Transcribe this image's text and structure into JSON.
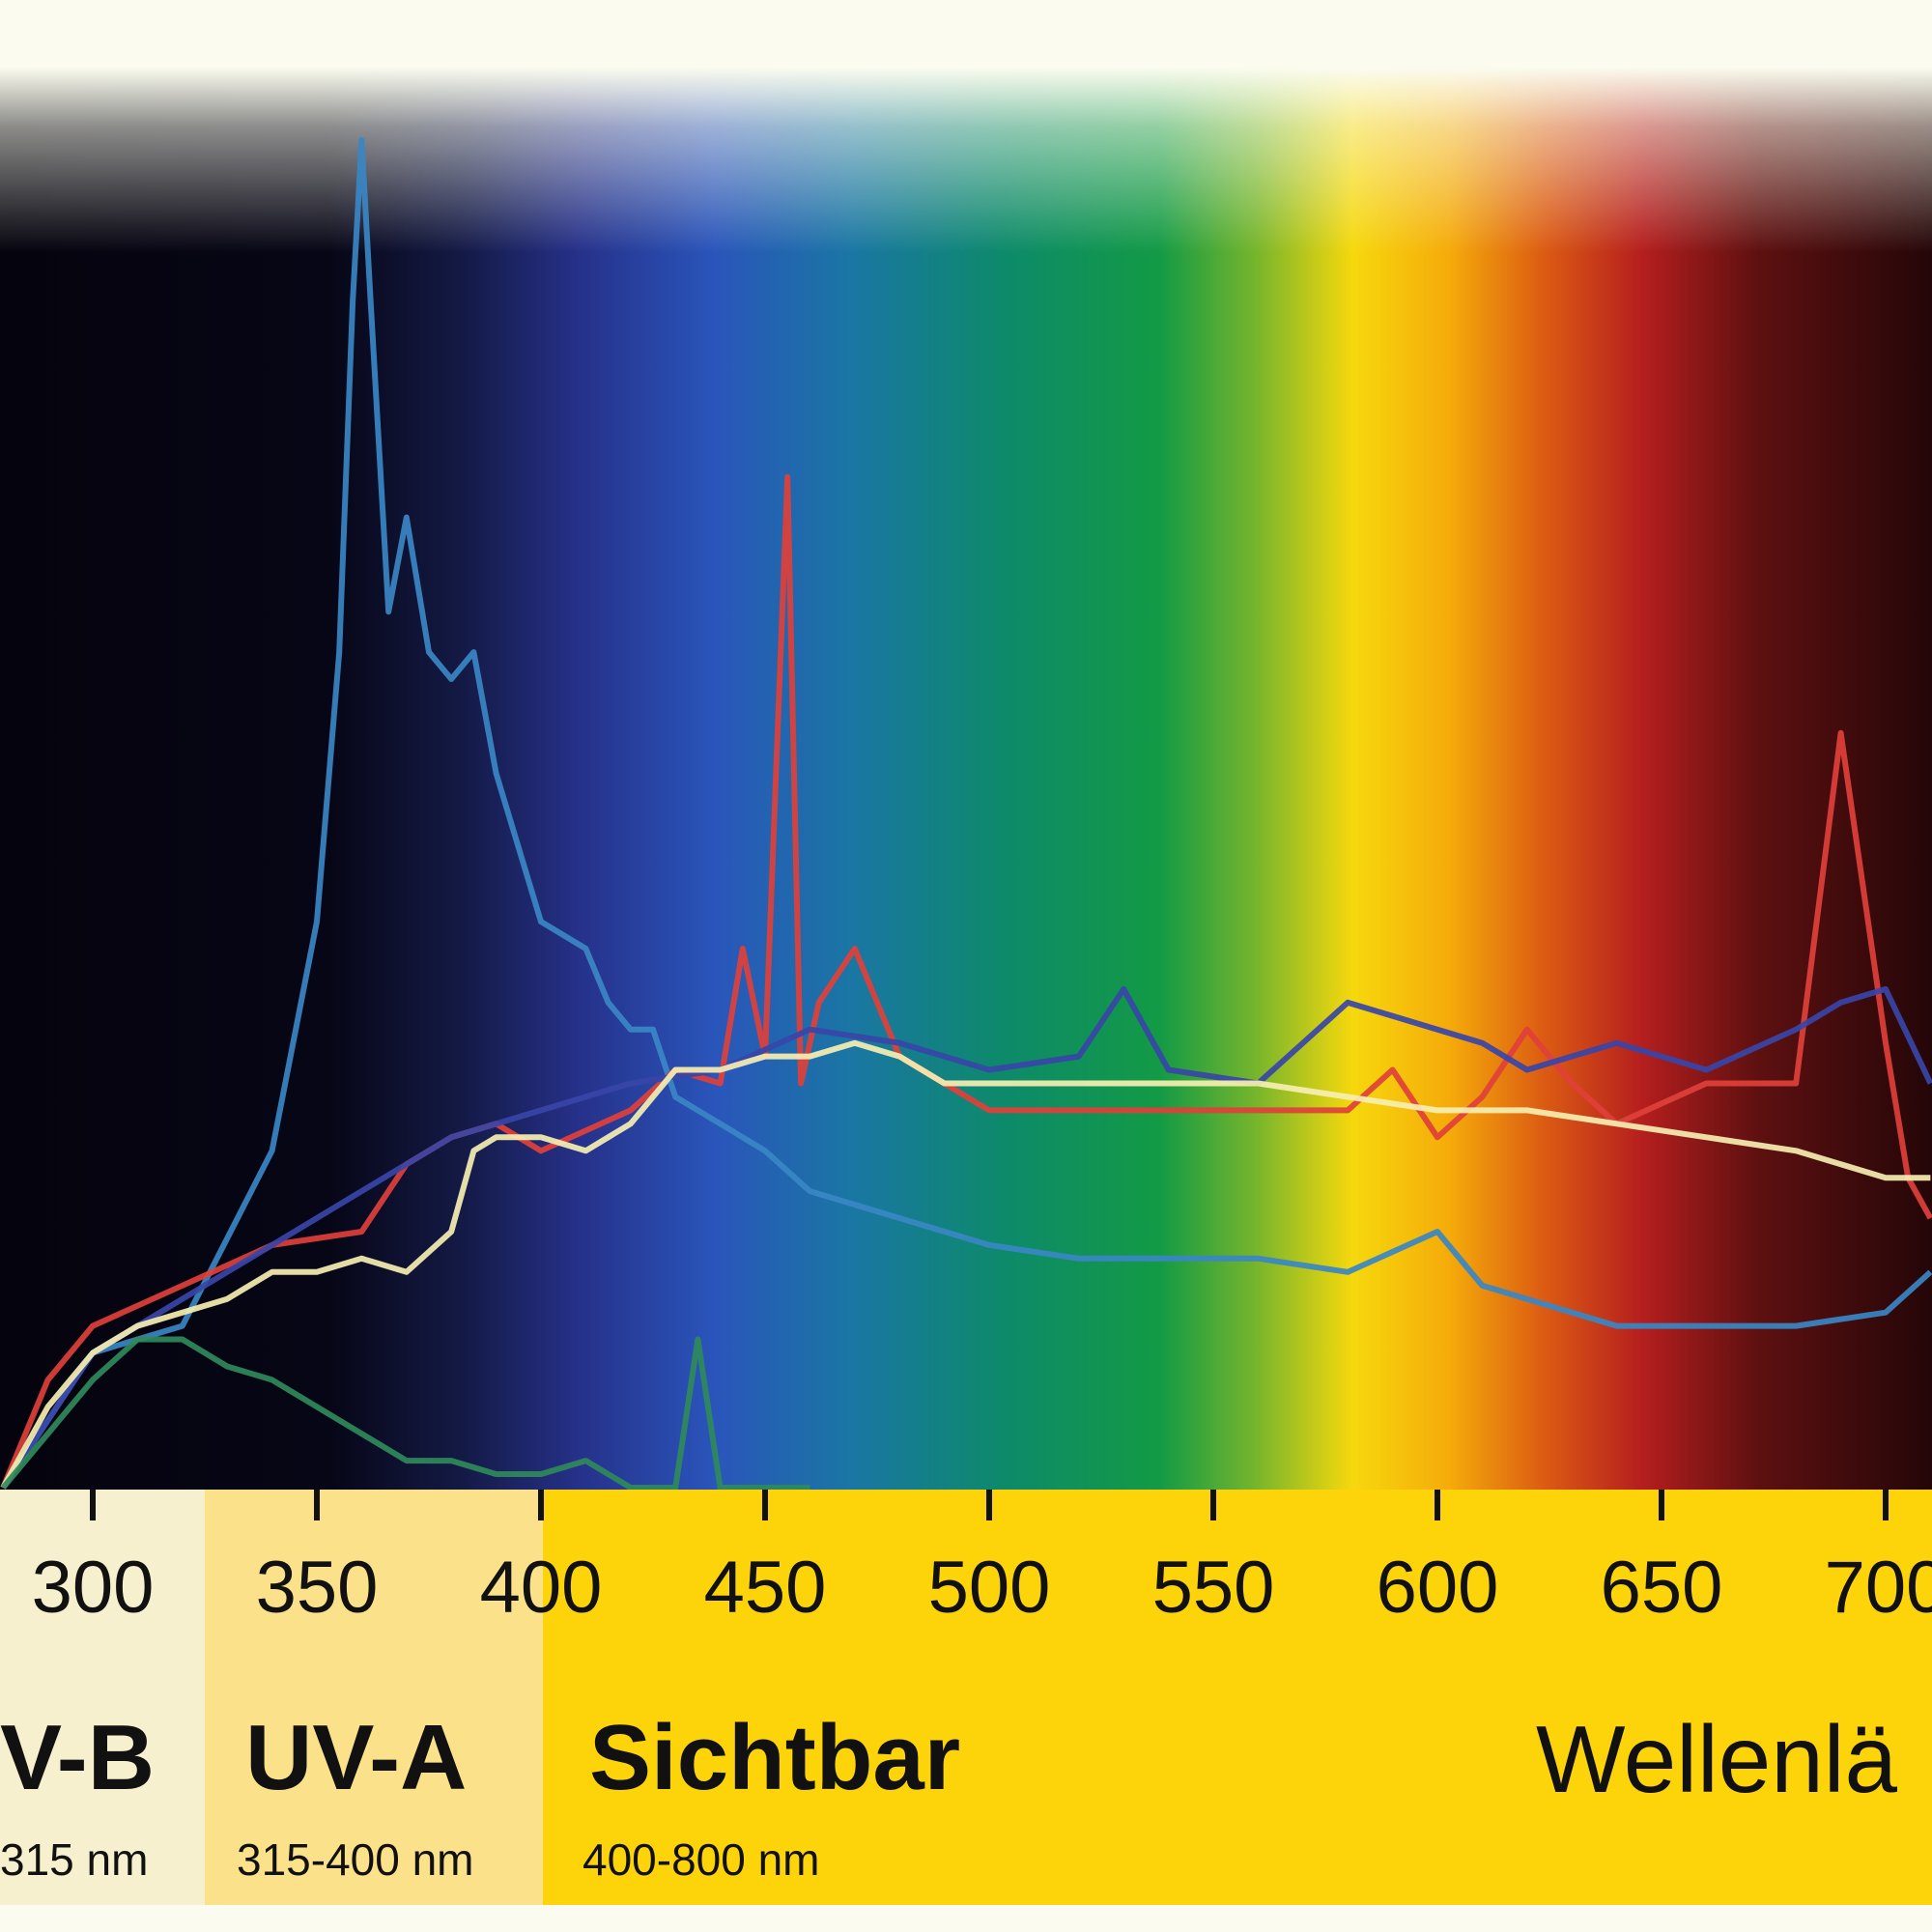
{
  "chart_data": {
    "type": "line",
    "x_ticks": [
      300,
      350,
      400,
      450,
      500,
      550,
      600,
      650,
      700
    ],
    "xlabel": "Wellenlä",
    "bands": [
      {
        "name": "V-B",
        "range": "315 nm",
        "from": 280,
        "to": 315,
        "color": "#f7f0cf"
      },
      {
        "name": "UV-A",
        "range": "315-400 nm",
        "from": 315,
        "to": 400,
        "color": "#fbe28a"
      },
      {
        "name": "Sichtbar",
        "range": "400-800 nm",
        "from": 400,
        "to": 800,
        "color": "#fdd40a"
      }
    ],
    "series": [
      {
        "color": "#3a87c4",
        "points": [
          [
            280,
            0.0
          ],
          [
            300,
            0.1
          ],
          [
            320,
            0.12
          ],
          [
            340,
            0.25
          ],
          [
            350,
            0.42
          ],
          [
            355,
            0.62
          ],
          [
            358,
            0.88
          ],
          [
            360,
            1.0
          ],
          [
            362,
            0.88
          ],
          [
            366,
            0.65
          ],
          [
            370,
            0.72
          ],
          [
            375,
            0.62
          ],
          [
            380,
            0.6
          ],
          [
            385,
            0.62
          ],
          [
            390,
            0.53
          ],
          [
            400,
            0.42
          ],
          [
            410,
            0.4
          ],
          [
            415,
            0.36
          ],
          [
            420,
            0.34
          ],
          [
            425,
            0.34
          ],
          [
            430,
            0.29
          ],
          [
            440,
            0.27
          ],
          [
            450,
            0.25
          ],
          [
            460,
            0.22
          ],
          [
            480,
            0.2
          ],
          [
            500,
            0.18
          ],
          [
            520,
            0.17
          ],
          [
            540,
            0.17
          ],
          [
            560,
            0.17
          ],
          [
            580,
            0.16
          ],
          [
            600,
            0.19
          ],
          [
            610,
            0.15
          ],
          [
            620,
            0.14
          ],
          [
            640,
            0.12
          ],
          [
            660,
            0.12
          ],
          [
            680,
            0.12
          ],
          [
            700,
            0.13
          ],
          [
            710,
            0.16
          ]
        ]
      },
      {
        "color": "#e0403a",
        "points": [
          [
            280,
            0.0
          ],
          [
            290,
            0.08
          ],
          [
            300,
            0.12
          ],
          [
            320,
            0.15
          ],
          [
            340,
            0.18
          ],
          [
            360,
            0.19
          ],
          [
            370,
            0.24
          ],
          [
            380,
            0.26
          ],
          [
            390,
            0.27
          ],
          [
            400,
            0.25
          ],
          [
            420,
            0.28
          ],
          [
            430,
            0.31
          ],
          [
            440,
            0.3
          ],
          [
            445,
            0.4
          ],
          [
            450,
            0.32
          ],
          [
            455,
            0.75
          ],
          [
            458,
            0.3
          ],
          [
            462,
            0.36
          ],
          [
            470,
            0.4
          ],
          [
            480,
            0.32
          ],
          [
            490,
            0.3
          ],
          [
            500,
            0.28
          ],
          [
            520,
            0.28
          ],
          [
            540,
            0.28
          ],
          [
            560,
            0.28
          ],
          [
            580,
            0.28
          ],
          [
            590,
            0.31
          ],
          [
            600,
            0.26
          ],
          [
            610,
            0.29
          ],
          [
            620,
            0.34
          ],
          [
            630,
            0.3
          ],
          [
            640,
            0.27
          ],
          [
            660,
            0.3
          ],
          [
            680,
            0.3
          ],
          [
            690,
            0.56
          ],
          [
            700,
            0.33
          ],
          [
            705,
            0.23
          ],
          [
            710,
            0.2
          ]
        ]
      },
      {
        "color": "#3845a8",
        "points": [
          [
            280,
            0.0
          ],
          [
            300,
            0.1
          ],
          [
            320,
            0.14
          ],
          [
            340,
            0.18
          ],
          [
            360,
            0.22
          ],
          [
            380,
            0.26
          ],
          [
            400,
            0.28
          ],
          [
            420,
            0.3
          ],
          [
            440,
            0.31
          ],
          [
            460,
            0.34
          ],
          [
            480,
            0.33
          ],
          [
            500,
            0.31
          ],
          [
            520,
            0.32
          ],
          [
            530,
            0.37
          ],
          [
            540,
            0.31
          ],
          [
            560,
            0.3
          ],
          [
            570,
            0.33
          ],
          [
            580,
            0.36
          ],
          [
            590,
            0.35
          ],
          [
            600,
            0.34
          ],
          [
            610,
            0.33
          ],
          [
            620,
            0.31
          ],
          [
            640,
            0.33
          ],
          [
            660,
            0.31
          ],
          [
            680,
            0.34
          ],
          [
            690,
            0.36
          ],
          [
            700,
            0.37
          ],
          [
            710,
            0.3
          ]
        ]
      },
      {
        "color": "#f6efb2",
        "points": [
          [
            280,
            0.0
          ],
          [
            290,
            0.06
          ],
          [
            300,
            0.1
          ],
          [
            310,
            0.12
          ],
          [
            320,
            0.13
          ],
          [
            330,
            0.14
          ],
          [
            340,
            0.16
          ],
          [
            350,
            0.16
          ],
          [
            360,
            0.17
          ],
          [
            370,
            0.16
          ],
          [
            380,
            0.19
          ],
          [
            385,
            0.25
          ],
          [
            390,
            0.26
          ],
          [
            400,
            0.26
          ],
          [
            410,
            0.25
          ],
          [
            420,
            0.27
          ],
          [
            430,
            0.31
          ],
          [
            440,
            0.31
          ],
          [
            450,
            0.32
          ],
          [
            460,
            0.32
          ],
          [
            470,
            0.33
          ],
          [
            480,
            0.32
          ],
          [
            490,
            0.3
          ],
          [
            500,
            0.3
          ],
          [
            520,
            0.3
          ],
          [
            540,
            0.3
          ],
          [
            560,
            0.3
          ],
          [
            580,
            0.29
          ],
          [
            600,
            0.28
          ],
          [
            620,
            0.28
          ],
          [
            640,
            0.27
          ],
          [
            660,
            0.26
          ],
          [
            680,
            0.25
          ],
          [
            700,
            0.23
          ],
          [
            710,
            0.23
          ]
        ]
      },
      {
        "color": "#2f8a5a",
        "points": [
          [
            280,
            0.0
          ],
          [
            290,
            0.04
          ],
          [
            300,
            0.08
          ],
          [
            310,
            0.11
          ],
          [
            320,
            0.11
          ],
          [
            330,
            0.09
          ],
          [
            340,
            0.08
          ],
          [
            350,
            0.06
          ],
          [
            360,
            0.04
          ],
          [
            370,
            0.02
          ],
          [
            380,
            0.02
          ],
          [
            390,
            0.01
          ],
          [
            400,
            0.01
          ],
          [
            410,
            0.02
          ],
          [
            420,
            0.0
          ],
          [
            430,
            0.0
          ],
          [
            435,
            0.11
          ],
          [
            440,
            0.0
          ],
          [
            460,
            0.0
          ]
        ]
      }
    ]
  }
}
